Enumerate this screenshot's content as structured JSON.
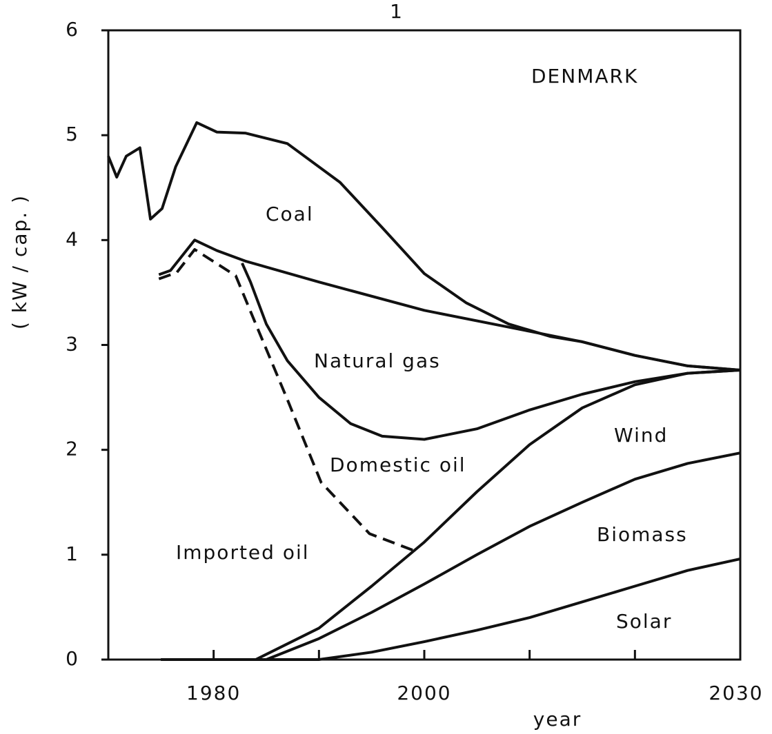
{
  "chart_data": {
    "type": "line",
    "panel_label": "1",
    "title": "DENMARK",
    "ylabel": "( kW / cap. )",
    "xlabel": "year",
    "xlim": [
      1970,
      2030
    ],
    "xticks": [
      1980,
      2000,
      2030
    ],
    "xminor": [
      1990,
      2010,
      2020
    ],
    "ylim": [
      0,
      6
    ],
    "yticks": [
      0,
      1,
      2,
      3,
      4,
      5,
      6
    ],
    "color": "#111111",
    "annotations": [
      "Coal",
      "Natural gas",
      "Domestic oil",
      "Imported oil",
      "Wind",
      "Biomass",
      "Solar"
    ],
    "series": [
      {
        "x": [
          1970,
          1970.8,
          1971.7,
          1973,
          1974,
          1975.1,
          1976.4,
          1978.4,
          1980.3,
          1983,
          1987,
          1992,
          1996,
          2000,
          2004,
          2008,
          2012,
          2015,
          2020,
          2025,
          2030
        ],
        "values": [
          4.8,
          4.6,
          4.8,
          4.88,
          4.2,
          4.3,
          4.7,
          5.12,
          5.03,
          5.02,
          4.92,
          4.55,
          4.12,
          3.68,
          3.4,
          3.2,
          3.08,
          3.03,
          2.9,
          2.8,
          2.76
        ],
        "dashed": false
      },
      {
        "x": [
          1974.8,
          1975.9,
          1978.2,
          1980.3,
          1983,
          1990,
          2000,
          2010,
          2015,
          2020,
          2025,
          2030
        ],
        "values": [
          3.67,
          3.71,
          4.0,
          3.9,
          3.8,
          3.6,
          3.33,
          3.13,
          3.03,
          2.9,
          2.8,
          2.76
        ],
        "dashed": false
      },
      {
        "x": [
          1982.7,
          1983.5,
          1985,
          1987,
          1990,
          1993,
          1996,
          2000,
          2005,
          2010,
          2015,
          2020,
          2025,
          2030
        ],
        "values": [
          3.78,
          3.6,
          3.2,
          2.85,
          2.5,
          2.25,
          2.13,
          2.1,
          2.2,
          2.38,
          2.53,
          2.65,
          2.73,
          2.76
        ],
        "dashed": false
      },
      {
        "x": [
          1974.8,
          1976.5,
          1978.2,
          1982.1,
          1984,
          1987,
          1990.2,
          1994.8,
          1999
        ],
        "values": [
          3.63,
          3.69,
          3.91,
          3.66,
          3.2,
          2.48,
          1.69,
          1.2,
          1.04
        ],
        "dashed": true
      },
      {
        "x": [
          1975,
          1984,
          1990,
          1995,
          2000,
          2005,
          2010,
          2015,
          2020,
          2025,
          2030
        ],
        "values": [
          0,
          0,
          0.3,
          0.7,
          1.12,
          1.6,
          2.05,
          2.4,
          2.62,
          2.73,
          2.76
        ],
        "dashed": false
      },
      {
        "x": [
          1975,
          1985,
          1990,
          1995,
          2000,
          2005,
          2010,
          2015,
          2020,
          2025,
          2030
        ],
        "values": [
          0,
          0,
          0.2,
          0.45,
          0.72,
          1.0,
          1.27,
          1.5,
          1.72,
          1.87,
          1.97
        ],
        "dashed": false
      },
      {
        "x": [
          1975,
          1990,
          1995,
          2000,
          2005,
          2010,
          2015,
          2020,
          2025,
          2030
        ],
        "values": [
          0,
          0,
          0.07,
          0.17,
          0.28,
          0.4,
          0.55,
          0.7,
          0.85,
          0.96
        ],
        "dashed": false
      }
    ]
  }
}
